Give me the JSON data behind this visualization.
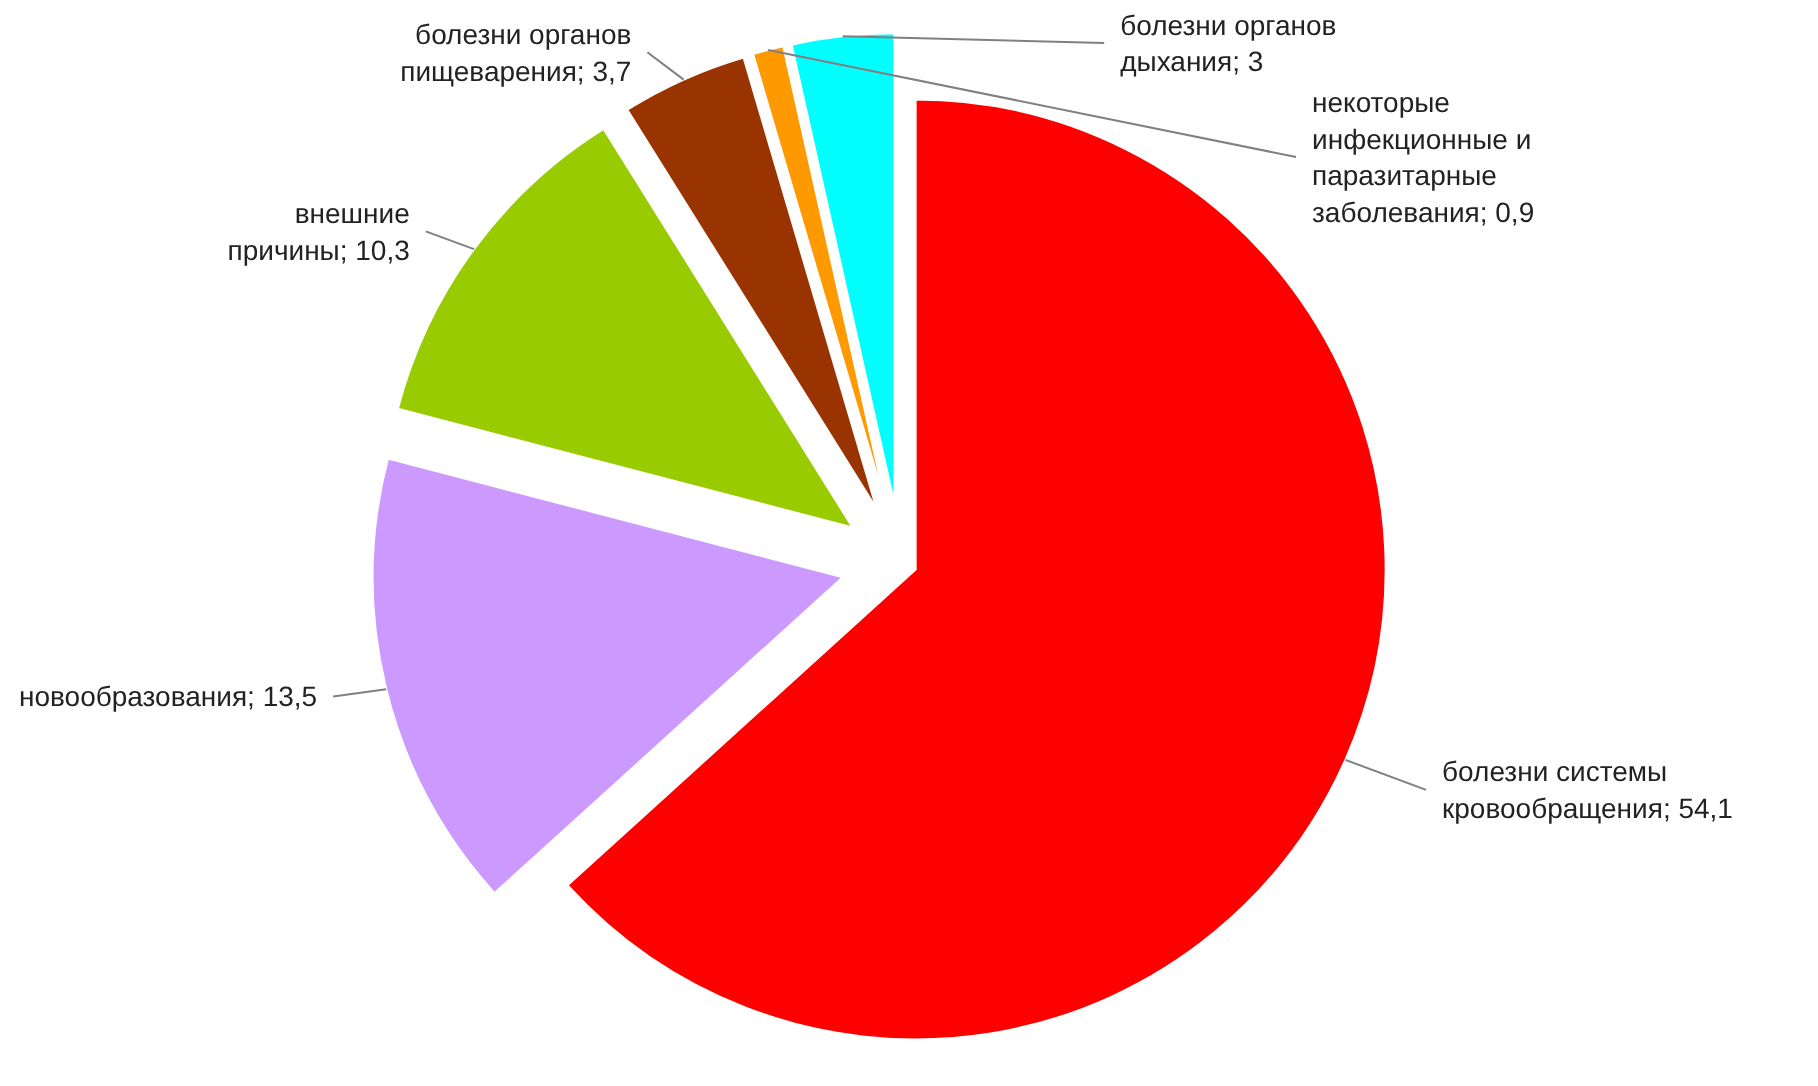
{
  "chart_data": {
    "type": "pie",
    "categories": [
      "болезни системы кровообращения",
      "новообразования",
      "внешние причины",
      "болезни органов пищеварения",
      "некоторые инфекционные и паразитарные заболевания",
      "болезни органов дыхания"
    ],
    "value_labels": [
      "54,1",
      "13,5",
      "10,3",
      "3,7",
      "0,9",
      "3"
    ],
    "values": [
      54.1,
      13.5,
      10.3,
      3.7,
      0.9,
      3
    ],
    "colors": [
      "#ff0000",
      "#cc99ff",
      "#99cc00",
      "#993300",
      "#ff9900",
      "#00ffff"
    ],
    "legend": false
  }
}
